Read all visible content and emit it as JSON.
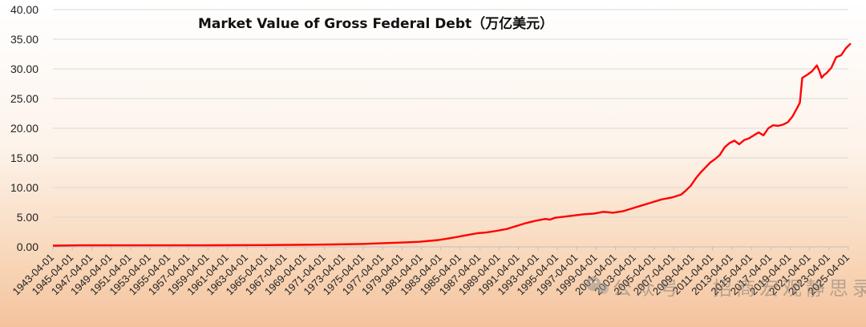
{
  "chart_data": {
    "type": "line",
    "title": "Market Value of Gross Federal Debt（万亿美元）",
    "xlabel": "",
    "ylabel": "",
    "ylim": [
      0,
      40
    ],
    "yticks": [
      0,
      5,
      10,
      15,
      20,
      25,
      30,
      35,
      40
    ],
    "ytick_labels": [
      "0.00",
      "5.00",
      "10.00",
      "15.00",
      "20.00",
      "25.00",
      "30.00",
      "35.00",
      "40.00"
    ],
    "xtick_labels": [
      "1943-04-01",
      "1945-04-01",
      "1947-04-01",
      "1949-04-01",
      "1951-04-01",
      "1953-04-01",
      "1955-04-01",
      "1957-04-01",
      "1959-04-01",
      "1961-04-01",
      "1963-04-01",
      "1965-04-01",
      "1967-04-01",
      "1969-04-01",
      "1971-04-01",
      "1973-04-01",
      "1975-04-01",
      "1977-04-01",
      "1979-04-01",
      "1981-04-01",
      "1983-04-01",
      "1985-04-01",
      "1987-04-01",
      "1989-04-01",
      "1991-04-01",
      "1993-04-01",
      "1995-04-01",
      "1997-04-01",
      "1999-04-01",
      "2001-04-01",
      "2003-04-01",
      "2005-04-01",
      "2007-04-01",
      "2009-04-01",
      "2011-04-01",
      "2013-04-01",
      "2015-04-01",
      "2017-04-01",
      "2019-04-01",
      "2021-04-01",
      "2023-04-01",
      "2025-04-01"
    ],
    "grid": true,
    "series": [
      {
        "color": "#ff0000",
        "x": [
          1943.25,
          1946,
          1950,
          1955,
          1960,
          1965,
          1970,
          1972,
          1975,
          1977,
          1979,
          1981,
          1983,
          1984,
          1985,
          1986,
          1987,
          1988,
          1989,
          1990,
          1991,
          1992,
          1993,
          1994,
          1994.5,
          1995,
          1996,
          1997,
          1998,
          1999,
          2000,
          2001,
          2002,
          2003,
          2004,
          2005,
          2006,
          2007,
          2008,
          2008.5,
          2009,
          2009.5,
          2010,
          2011,
          2011.5,
          2012,
          2012.5,
          2013,
          2013.5,
          2014,
          2014.5,
          2015,
          2016,
          2016.5,
          2017,
          2017.5,
          2018,
          2018.5,
          2019,
          2019.5,
          2020,
          2020.25,
          2020.5,
          2021,
          2021.5,
          2022,
          2022.25,
          2022.5,
          2022.75,
          2023,
          2023.5,
          2024,
          2024.5,
          2025,
          2025.5
        ],
        "y": [
          0.2,
          0.25,
          0.25,
          0.26,
          0.27,
          0.3,
          0.36,
          0.4,
          0.48,
          0.6,
          0.72,
          0.85,
          1.15,
          1.4,
          1.7,
          2.0,
          2.3,
          2.45,
          2.7,
          3.0,
          3.5,
          4.0,
          4.4,
          4.7,
          4.6,
          4.9,
          5.1,
          5.3,
          5.5,
          5.6,
          5.9,
          5.75,
          6.0,
          6.5,
          7.0,
          7.5,
          8.0,
          8.3,
          8.8,
          9.5,
          10.3,
          11.5,
          12.5,
          14.2,
          14.8,
          15.5,
          16.8,
          17.5,
          17.9,
          17.3,
          18.0,
          18.3,
          19.3,
          18.8,
          20.0,
          20.5,
          20.4,
          20.6,
          21.0,
          22.0,
          23.5,
          24.3,
          28.5,
          29.0,
          29.6,
          30.6,
          29.7,
          28.5,
          29.0,
          29.3,
          30.2,
          32.0,
          32.3,
          33.5,
          34.3
        ]
      }
    ]
  },
  "watermark": {
    "text": "公众号 · 招商宏观静思录",
    "icon": "wechat-icon"
  }
}
